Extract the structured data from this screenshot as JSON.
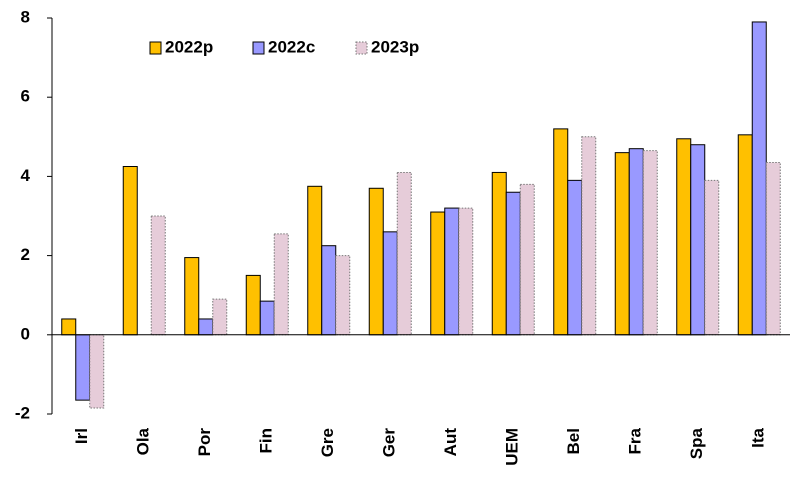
{
  "chart_data": {
    "type": "bar",
    "categories": [
      "Irl",
      "Ola",
      "Por",
      "Fin",
      "Gre",
      "Ger",
      "Aut",
      "UEM",
      "Bel",
      "Fra",
      "Spa",
      "Ita"
    ],
    "series": [
      {
        "name": "2022p",
        "color": "#FFC000",
        "values": [
          0.4,
          4.25,
          1.95,
          1.5,
          3.75,
          3.7,
          3.1,
          4.1,
          5.2,
          4.6,
          4.95,
          5.05
        ]
      },
      {
        "name": "2022c",
        "color": "#9999FF",
        "values": [
          -1.65,
          0,
          0.4,
          0.85,
          2.25,
          2.6,
          3.2,
          3.6,
          3.9,
          4.7,
          4.8,
          7.9
        ]
      },
      {
        "name": "2023p",
        "color": "#E6CCD9",
        "values": [
          -1.85,
          3.0,
          0.9,
          2.55,
          2.0,
          4.1,
          3.2,
          3.8,
          5.0,
          4.65,
          3.9,
          4.35
        ]
      }
    ],
    "ylim": [
      -2,
      8
    ],
    "yticks": [
      -2,
      0,
      2,
      4,
      6,
      8
    ],
    "grid": false,
    "legend": "top-left"
  }
}
